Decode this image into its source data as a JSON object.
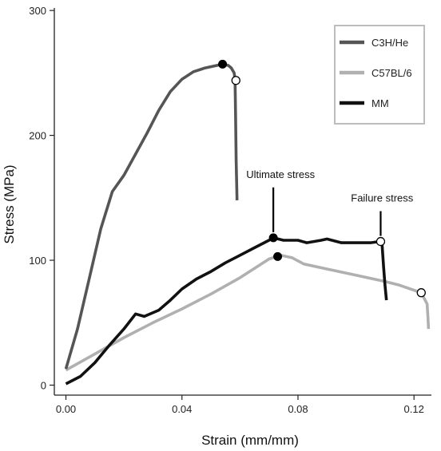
{
  "chart_data": {
    "type": "line",
    "title": "",
    "xlabel": "Strain (mm/mm)",
    "ylabel": "Stress (MPa)",
    "xlim": [
      -0.004,
      0.126
    ],
    "ylim": [
      -8,
      302
    ],
    "x_ticks": [
      0.0,
      0.04,
      0.08,
      0.12
    ],
    "x_tick_labels": [
      "0.00",
      "0.04",
      "0.08",
      "0.12"
    ],
    "y_ticks": [
      0,
      100,
      200,
      300
    ],
    "y_tick_labels": [
      "0",
      "100",
      "200",
      "300"
    ],
    "grid": false,
    "legend_position": "top-right",
    "series": [
      {
        "name": "C3H/He",
        "color": "#555555",
        "points": [
          [
            0.0,
            13
          ],
          [
            0.004,
            45
          ],
          [
            0.008,
            85
          ],
          [
            0.012,
            125
          ],
          [
            0.016,
            155
          ],
          [
            0.02,
            168
          ],
          [
            0.024,
            185
          ],
          [
            0.028,
            202
          ],
          [
            0.032,
            220
          ],
          [
            0.036,
            235
          ],
          [
            0.04,
            245
          ],
          [
            0.044,
            251
          ],
          [
            0.048,
            254
          ],
          [
            0.052,
            256
          ],
          [
            0.054,
            257
          ],
          [
            0.056,
            256
          ],
          [
            0.057,
            254
          ],
          [
            0.058,
            250
          ],
          [
            0.0583,
            245
          ],
          [
            0.0585,
            215
          ],
          [
            0.0587,
            180
          ],
          [
            0.059,
            148
          ]
        ],
        "ultimate": [
          0.054,
          257
        ],
        "failure": [
          0.0586,
          244
        ]
      },
      {
        "name": "C57BL/6",
        "color": "#b0b0b0",
        "points": [
          [
            0.0,
            12
          ],
          [
            0.01,
            25
          ],
          [
            0.02,
            38
          ],
          [
            0.03,
            50
          ],
          [
            0.04,
            61
          ],
          [
            0.05,
            73
          ],
          [
            0.06,
            86
          ],
          [
            0.066,
            95
          ],
          [
            0.07,
            101
          ],
          [
            0.074,
            104
          ],
          [
            0.078,
            102
          ],
          [
            0.082,
            97
          ],
          [
            0.09,
            93
          ],
          [
            0.1,
            88
          ],
          [
            0.11,
            83
          ],
          [
            0.115,
            80
          ],
          [
            0.12,
            76
          ],
          [
            0.1225,
            74
          ],
          [
            0.1245,
            65
          ],
          [
            0.1248,
            55
          ],
          [
            0.125,
            45
          ]
        ],
        "ultimate": [
          0.073,
          103
        ],
        "failure": [
          0.1225,
          74
        ]
      },
      {
        "name": "MM",
        "color": "#111111",
        "points": [
          [
            0.0,
            1
          ],
          [
            0.005,
            7
          ],
          [
            0.01,
            18
          ],
          [
            0.015,
            32
          ],
          [
            0.02,
            45
          ],
          [
            0.024,
            57
          ],
          [
            0.027,
            55
          ],
          [
            0.032,
            60
          ],
          [
            0.036,
            68
          ],
          [
            0.04,
            77
          ],
          [
            0.045,
            85
          ],
          [
            0.05,
            91
          ],
          [
            0.055,
            98
          ],
          [
            0.06,
            104
          ],
          [
            0.065,
            110
          ],
          [
            0.07,
            116
          ],
          [
            0.0715,
            118
          ],
          [
            0.075,
            116
          ],
          [
            0.08,
            116
          ],
          [
            0.083,
            114
          ],
          [
            0.088,
            116
          ],
          [
            0.09,
            117
          ],
          [
            0.095,
            114
          ],
          [
            0.1,
            114
          ],
          [
            0.105,
            114
          ],
          [
            0.108,
            115
          ],
          [
            0.1085,
            115
          ],
          [
            0.109,
            112
          ],
          [
            0.1095,
            95
          ],
          [
            0.11,
            80
          ],
          [
            0.1105,
            68
          ]
        ],
        "ultimate": [
          0.0715,
          118
        ],
        "failure": [
          0.1085,
          115
        ]
      }
    ],
    "annotations": [
      {
        "text": "Ultimate stress",
        "x": 0.074,
        "y": 166,
        "target": [
          0.0715,
          118
        ]
      },
      {
        "text": "Failure stress",
        "x": 0.109,
        "y": 147,
        "target": [
          0.1085,
          115
        ]
      }
    ]
  }
}
